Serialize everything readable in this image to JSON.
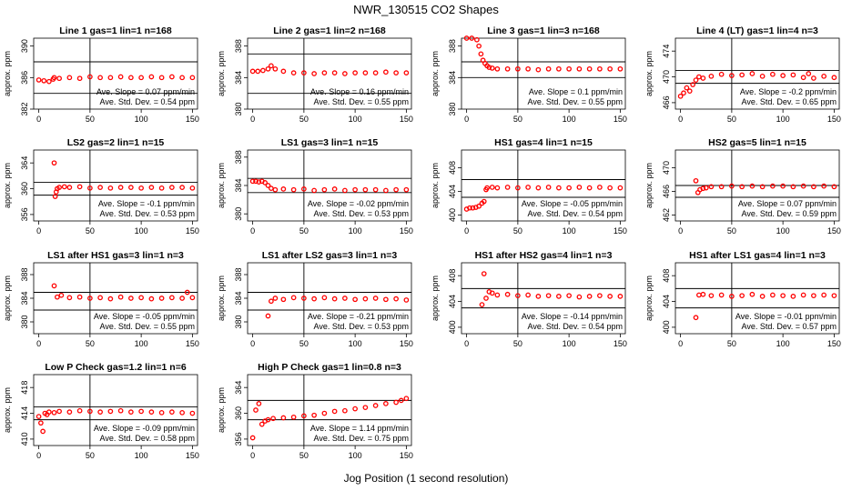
{
  "figure": {
    "title": "NWR_130515   CO2 Shapes",
    "xlabel": "Jog Position (1 second resolution)",
    "ylabel": "approx. ppm",
    "point_color": "#ff0000"
  },
  "chart_data": [
    {
      "type": "scatter",
      "title": "Line 1 gas=1 lin=1 n=168",
      "xlim": [
        -5,
        155
      ],
      "xticks": [
        0,
        50,
        100,
        150
      ],
      "ylim": [
        382,
        391
      ],
      "yticks": [
        382,
        386,
        390
      ],
      "hlines": [
        388,
        384
      ],
      "vline": 50,
      "slope_text": "Ave. Slope = 0.07 ppm/min",
      "std_text": "Ave. Std. Dev. = 0.54 ppm",
      "series": [
        {
          "x": [
            0,
            5,
            10,
            14,
            15,
            20,
            30,
            40,
            50,
            60,
            70,
            80,
            90,
            100,
            110,
            120,
            130,
            140,
            150
          ],
          "y": [
            385.7,
            385.6,
            385.5,
            385.8,
            386.0,
            385.9,
            386.0,
            385.9,
            386.1,
            386.0,
            386.0,
            386.1,
            386.0,
            386.0,
            386.1,
            386.0,
            386.1,
            386.0,
            386.0
          ]
        }
      ]
    },
    {
      "type": "scatter",
      "title": "Line 2 gas=1 lin=2 n=168",
      "xlim": [
        -5,
        155
      ],
      "xticks": [
        0,
        50,
        100,
        150
      ],
      "ylim": [
        380,
        389
      ],
      "yticks": [
        380,
        384,
        388
      ],
      "hlines": [
        387,
        382
      ],
      "vline": 50,
      "slope_text": "Ave. Slope = 0.16 ppm/min",
      "std_text": "Ave. Std. Dev. = 0.55 ppm",
      "series": [
        {
          "x": [
            0,
            5,
            10,
            15,
            18,
            22,
            30,
            40,
            50,
            60,
            70,
            80,
            90,
            100,
            110,
            120,
            130,
            140,
            150
          ],
          "y": [
            384.8,
            384.8,
            384.9,
            385.1,
            385.5,
            385.1,
            384.8,
            384.6,
            384.6,
            384.5,
            384.6,
            384.6,
            384.5,
            384.6,
            384.6,
            384.6,
            384.7,
            384.6,
            384.6
          ]
        }
      ]
    },
    {
      "type": "scatter",
      "title": "Line 3 gas=1 lin=3 n=168",
      "xlim": [
        -5,
        155
      ],
      "xticks": [
        0,
        50,
        100,
        150
      ],
      "ylim": [
        380,
        389
      ],
      "yticks": [
        380,
        384,
        388
      ],
      "hlines": [
        386,
        384
      ],
      "vline": 50,
      "slope_text": "Ave. Slope = 0.1 ppm/min",
      "std_text": "Ave. Std. Dev. = 0.55 ppm",
      "series": [
        {
          "x": [
            0,
            5,
            10,
            12,
            14,
            16,
            18,
            20,
            22,
            25,
            30,
            40,
            50,
            60,
            70,
            80,
            90,
            100,
            110,
            120,
            130,
            140,
            150
          ],
          "y": [
            389,
            389,
            388.8,
            388.0,
            387.0,
            386.2,
            385.8,
            385.5,
            385.3,
            385.2,
            385.1,
            385.1,
            385.1,
            385.1,
            385.0,
            385.1,
            385.1,
            385.1,
            385.1,
            385.1,
            385.1,
            385.1,
            385.1
          ]
        }
      ]
    },
    {
      "type": "scatter",
      "title": "Line 4 (LT) gas=1 lin=4 n=3",
      "xlim": [
        -5,
        155
      ],
      "xticks": [
        0,
        50,
        100,
        150
      ],
      "ylim": [
        465,
        476
      ],
      "yticks": [
        466,
        470,
        474
      ],
      "hlines": [
        471,
        469
      ],
      "vline": 50,
      "slope_text": "Ave. Slope = -0.2 ppm/min",
      "std_text": "Ave. Std. Dev. = 0.65 ppm",
      "series": [
        {
          "x": [
            0,
            3,
            6,
            9,
            12,
            15,
            18,
            22,
            30,
            40,
            50,
            60,
            70,
            80,
            90,
            100,
            110,
            120,
            125,
            130,
            140,
            150
          ],
          "y": [
            467.0,
            467.5,
            468.3,
            467.8,
            468.8,
            469.5,
            470.0,
            469.8,
            470.1,
            470.4,
            470.2,
            470.3,
            470.5,
            470.1,
            470.4,
            470.2,
            470.3,
            469.9,
            470.5,
            469.8,
            470.1,
            469.9
          ]
        }
      ]
    },
    {
      "type": "scatter",
      "title": "LS2 gas=2 lin=1 n=15",
      "xlim": [
        -5,
        155
      ],
      "xticks": [
        0,
        50,
        100,
        150
      ],
      "ylim": [
        355,
        366
      ],
      "yticks": [
        356,
        360,
        364
      ],
      "hlines": [
        361,
        359
      ],
      "vline": 50,
      "slope_text": "Ave. Slope = -0.1 ppm/min",
      "std_text": "Ave. Std. Dev. = 0.53 ppm",
      "series": [
        {
          "x": [
            15,
            16,
            17,
            18,
            20,
            25,
            30,
            40,
            50,
            60,
            70,
            80,
            90,
            100,
            110,
            120,
            130,
            140,
            150
          ],
          "y": [
            364.0,
            358.8,
            359.5,
            360.0,
            360.2,
            360.3,
            360.2,
            360.3,
            360.1,
            360.2,
            360.1,
            360.2,
            360.2,
            360.1,
            360.2,
            360.1,
            360.2,
            360.2,
            360.1
          ]
        }
      ]
    },
    {
      "type": "scatter",
      "title": "LS1 gas=3 lin=1 n=15",
      "xlim": [
        -5,
        155
      ],
      "xticks": [
        0,
        50,
        100,
        150
      ],
      "ylim": [
        379,
        389
      ],
      "yticks": [
        380,
        384,
        388
      ],
      "hlines": [
        385,
        383
      ],
      "vline": 50,
      "slope_text": "Ave. Slope = -0.02 ppm/min",
      "std_text": "Ave. Std. Dev. = 0.53 ppm",
      "series": [
        {
          "x": [
            0,
            3,
            6,
            9,
            12,
            15,
            18,
            22,
            30,
            40,
            50,
            60,
            70,
            80,
            90,
            100,
            110,
            120,
            130,
            140,
            150
          ],
          "y": [
            384.6,
            384.6,
            384.5,
            384.6,
            384.4,
            384.0,
            383.6,
            383.4,
            383.5,
            383.4,
            383.5,
            383.3,
            383.4,
            383.5,
            383.3,
            383.4,
            383.4,
            383.4,
            383.3,
            383.4,
            383.4
          ]
        }
      ]
    },
    {
      "type": "scatter",
      "title": "HS1 gas=4 lin=1 n=15",
      "xlim": [
        -5,
        155
      ],
      "xticks": [
        0,
        50,
        100,
        150
      ],
      "ylim": [
        399,
        411
      ],
      "yticks": [
        400,
        404,
        408
      ],
      "hlines": [
        406,
        403
      ],
      "vline": 50,
      "slope_text": "Ave. Slope = -0.05 ppm/min",
      "std_text": "Ave. Std. Dev. = 0.54 ppm",
      "series": [
        {
          "x": [
            0,
            3,
            6,
            9,
            12,
            15,
            17,
            19,
            20,
            25,
            30,
            40,
            50,
            60,
            70,
            80,
            90,
            100,
            110,
            120,
            130,
            140,
            150
          ],
          "y": [
            401.0,
            401.2,
            401.2,
            401.3,
            401.5,
            402.0,
            402.3,
            404.3,
            404.6,
            404.7,
            404.6,
            404.7,
            404.6,
            404.7,
            404.6,
            404.7,
            404.6,
            404.6,
            404.7,
            404.6,
            404.7,
            404.6,
            404.6
          ]
        }
      ]
    },
    {
      "type": "scatter",
      "title": "HS2 gas=5 lin=1 n=15",
      "xlim": [
        -5,
        155
      ],
      "xticks": [
        0,
        50,
        100,
        150
      ],
      "ylim": [
        461,
        473
      ],
      "yticks": [
        462,
        466,
        470
      ],
      "hlines": [
        467,
        465
      ],
      "vline": 50,
      "slope_text": "Ave. Slope = 0.07 ppm/min",
      "std_text": "Ave. Std. Dev. = 0.59 ppm",
      "series": [
        {
          "x": [
            15,
            17,
            19,
            22,
            25,
            30,
            40,
            50,
            60,
            70,
            80,
            90,
            100,
            110,
            120,
            130,
            140,
            150
          ],
          "y": [
            467.8,
            465.8,
            466.3,
            466.5,
            466.6,
            466.8,
            466.8,
            466.9,
            466.8,
            466.9,
            466.8,
            466.9,
            466.9,
            466.8,
            466.9,
            466.8,
            466.9,
            466.8
          ]
        }
      ]
    },
    {
      "type": "scatter",
      "title": "LS1 after HS1 gas=3 lin=1 n=3",
      "xlim": [
        -5,
        155
      ],
      "xticks": [
        0,
        50,
        100,
        150
      ],
      "ylim": [
        378,
        390
      ],
      "yticks": [
        380,
        384,
        388
      ],
      "hlines": [
        385,
        382
      ],
      "vline": 50,
      "slope_text": "Ave. Slope = -0.05 ppm/min",
      "std_text": "Ave. Std. Dev. = 0.55 ppm",
      "series": [
        {
          "x": [
            15,
            18,
            22,
            30,
            40,
            50,
            60,
            70,
            80,
            90,
            100,
            110,
            120,
            130,
            140,
            145,
            150
          ],
          "y": [
            386.1,
            384.2,
            384.5,
            384.1,
            384.2,
            384.0,
            384.1,
            383.9,
            384.2,
            384.0,
            384.1,
            383.9,
            384.0,
            384.1,
            384.0,
            385.0,
            384.1
          ]
        }
      ]
    },
    {
      "type": "scatter",
      "title": "LS1 after LS2 gas=3 lin=1 n=3",
      "xlim": [
        -5,
        155
      ],
      "xticks": [
        0,
        50,
        100,
        150
      ],
      "ylim": [
        378,
        390
      ],
      "yticks": [
        380,
        384,
        388
      ],
      "hlines": [
        385,
        382
      ],
      "vline": 50,
      "slope_text": "Ave. Slope = -0.21 ppm/min",
      "std_text": "Ave. Std. Dev. = 0.53 ppm",
      "series": [
        {
          "x": [
            15,
            18,
            22,
            30,
            40,
            50,
            60,
            70,
            80,
            90,
            100,
            110,
            120,
            130,
            140,
            150
          ],
          "y": [
            381.0,
            383.5,
            384.0,
            383.8,
            384.1,
            384.0,
            383.9,
            384.1,
            383.9,
            384.0,
            383.8,
            383.9,
            384.0,
            383.8,
            383.9,
            383.7
          ]
        }
      ]
    },
    {
      "type": "scatter",
      "title": "HS1 after HS2 gas=4 lin=1 n=3",
      "xlim": [
        -5,
        155
      ],
      "xticks": [
        0,
        50,
        100,
        150
      ],
      "ylim": [
        399,
        410
      ],
      "yticks": [
        400,
        404,
        408
      ],
      "hlines": [
        406,
        403
      ],
      "vline": 50,
      "slope_text": "Ave. Slope = -0.14 ppm/min",
      "std_text": "Ave. Std. Dev. = 0.54 ppm",
      "series": [
        {
          "x": [
            15,
            17,
            19,
            22,
            25,
            30,
            40,
            50,
            60,
            70,
            80,
            90,
            100,
            110,
            120,
            130,
            140,
            150
          ],
          "y": [
            403.5,
            408.3,
            404.5,
            405.5,
            405.3,
            405.0,
            405.1,
            404.9,
            405.0,
            404.8,
            404.9,
            404.8,
            404.9,
            404.7,
            404.8,
            404.9,
            404.8,
            404.8
          ]
        }
      ]
    },
    {
      "type": "scatter",
      "title": "HS1 after LS1 gas=4 lin=1 n=3",
      "xlim": [
        -5,
        155
      ],
      "xticks": [
        0,
        50,
        100,
        150
      ],
      "ylim": [
        399,
        410
      ],
      "yticks": [
        400,
        404,
        408
      ],
      "hlines": [
        406,
        403
      ],
      "vline": 50,
      "slope_text": "Ave. Slope = -0.01 ppm/min",
      "std_text": "Ave. Std. Dev. = 0.57 ppm",
      "series": [
        {
          "x": [
            15,
            18,
            22,
            30,
            40,
            50,
            60,
            70,
            80,
            90,
            100,
            110,
            120,
            130,
            140,
            150
          ],
          "y": [
            401.5,
            405.0,
            405.1,
            404.9,
            405.0,
            404.8,
            404.9,
            405.1,
            404.8,
            405.0,
            404.9,
            404.8,
            405.0,
            404.9,
            405.0,
            404.9
          ]
        }
      ]
    },
    {
      "type": "scatter",
      "title": "Low P Check gas=1.2 lin=1 n=6",
      "xlim": [
        -5,
        155
      ],
      "xticks": [
        0,
        50,
        100,
        150
      ],
      "ylim": [
        409,
        420
      ],
      "yticks": [
        410,
        414,
        418
      ],
      "hlines": [
        415,
        413
      ],
      "vline": 50,
      "slope_text": "Ave. Slope = -0.09 ppm/min",
      "std_text": "Ave. Std. Dev. = 0.58 ppm",
      "series": [
        {
          "x": [
            0,
            2,
            4,
            6,
            8,
            10,
            15,
            20,
            30,
            40,
            50,
            60,
            70,
            80,
            90,
            100,
            110,
            120,
            130,
            140,
            150
          ],
          "y": [
            413.5,
            412.5,
            411.2,
            414.0,
            413.8,
            414.2,
            414.1,
            414.3,
            414.2,
            414.4,
            414.3,
            414.2,
            414.3,
            414.4,
            414.2,
            414.3,
            414.2,
            414.1,
            414.2,
            414.1,
            414.0
          ]
        }
      ]
    },
    {
      "type": "scatter",
      "title": "High P Check gas=1 lin=0.8 n=3",
      "xlim": [
        -5,
        155
      ],
      "xticks": [
        0,
        50,
        100,
        150
      ],
      "ylim": [
        355,
        366
      ],
      "yticks": [
        356,
        360,
        364
      ],
      "hlines": [
        362,
        359
      ],
      "vline": 50,
      "slope_text": "Ave. Slope = 1.14 ppm/min",
      "std_text": "Ave. Std. Dev. = 0.75 ppm",
      "series": [
        {
          "x": [
            0,
            3,
            6,
            9,
            12,
            15,
            20,
            30,
            40,
            50,
            60,
            70,
            80,
            90,
            100,
            110,
            120,
            130,
            140,
            145,
            150
          ],
          "y": [
            356.2,
            360.5,
            361.5,
            358.3,
            358.8,
            359.0,
            359.2,
            359.3,
            359.4,
            359.6,
            359.7,
            360.0,
            360.3,
            360.4,
            360.7,
            360.9,
            361.2,
            361.5,
            361.7,
            362.0,
            362.3
          ]
        }
      ]
    }
  ]
}
